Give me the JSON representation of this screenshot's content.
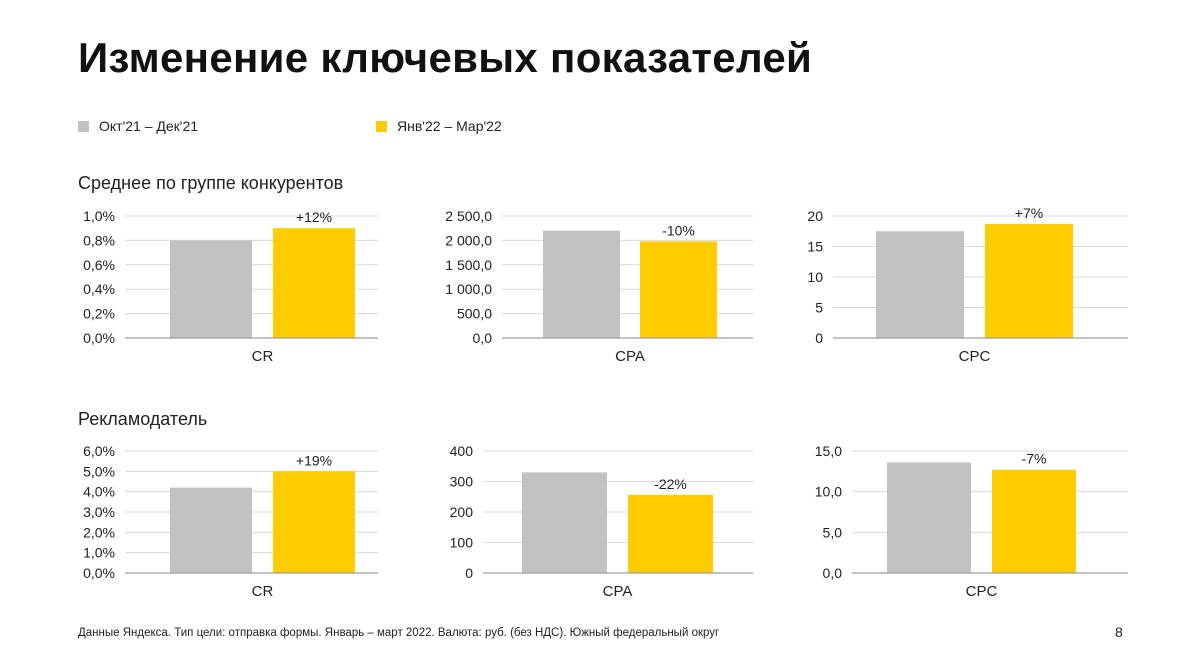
{
  "title": "Изменение ключевых показателей",
  "legend": [
    {
      "label": "Окт'21 – Дек'21",
      "color": "#c2c2c2"
    },
    {
      "label": "Янв'22 – Мар'22",
      "color": "#ffcc00"
    }
  ],
  "sections": [
    {
      "heading": "Среднее по группе конкурентов"
    },
    {
      "heading": "Рекламодатель"
    }
  ],
  "colors": {
    "grid": "#d9d9d9",
    "axis": "#9e9e9e",
    "period1": "#c2c2c2",
    "period2": "#ffcc00"
  },
  "chart_data": [
    {
      "type": "bar",
      "category": "CR",
      "series": [
        {
          "name": "Окт'21 – Дек'21",
          "values": [
            0.8
          ]
        },
        {
          "name": "Янв'22 – Мар'22",
          "values": [
            0.9
          ]
        }
      ],
      "ylim": [
        0,
        1.0
      ],
      "yticks": [
        "0,0%",
        "0,2%",
        "0,4%",
        "0,6%",
        "0,8%",
        "1,0%"
      ],
      "annotation": "+12%",
      "grid": true
    },
    {
      "type": "bar",
      "category": "CPA",
      "series": [
        {
          "name": "Окт'21 – Дек'21",
          "values": [
            2200
          ]
        },
        {
          "name": "Янв'22 – Мар'22",
          "values": [
            1980
          ]
        }
      ],
      "ylim": [
        0,
        2500
      ],
      "yticks": [
        "0,0",
        "500,0",
        "1 000,0",
        "1 500,0",
        "2 000,0",
        "2 500,0"
      ],
      "annotation": "-10%",
      "grid": true
    },
    {
      "type": "bar",
      "category": "CPC",
      "series": [
        {
          "name": "Окт'21 – Дек'21",
          "values": [
            17.5
          ]
        },
        {
          "name": "Янв'22 – Мар'22",
          "values": [
            18.7
          ]
        }
      ],
      "ylim": [
        0,
        20
      ],
      "yticks": [
        "0",
        "5",
        "10",
        "15",
        "20"
      ],
      "annotation": "+7%",
      "grid": true
    },
    {
      "type": "bar",
      "category": "CR",
      "series": [
        {
          "name": "Окт'21 – Дек'21",
          "values": [
            4.2
          ]
        },
        {
          "name": "Янв'22 – Мар'22",
          "values": [
            5.0
          ]
        }
      ],
      "ylim": [
        0,
        6.0
      ],
      "yticks": [
        "0,0%",
        "1,0%",
        "2,0%",
        "3,0%",
        "4,0%",
        "5,0%",
        "6,0%"
      ],
      "annotation": "+19%",
      "grid": true
    },
    {
      "type": "bar",
      "category": "CPA",
      "series": [
        {
          "name": "Окт'21 – Дек'21",
          "values": [
            330
          ]
        },
        {
          "name": "Янв'22 – Мар'22",
          "values": [
            256
          ]
        }
      ],
      "ylim": [
        0,
        400
      ],
      "yticks": [
        "0",
        "100",
        "200",
        "300",
        "400"
      ],
      "annotation": "-22%",
      "grid": true
    },
    {
      "type": "bar",
      "category": "CPC",
      "series": [
        {
          "name": "Окт'21 – Дек'21",
          "values": [
            13.6
          ]
        },
        {
          "name": "Янв'22 – Мар'22",
          "values": [
            12.7
          ]
        }
      ],
      "ylim": [
        0,
        15.0
      ],
      "yticks": [
        "0,0",
        "5,0",
        "10,0",
        "15,0"
      ],
      "annotation": "-7%",
      "grid": true
    }
  ],
  "footer": "Данные Яндекса. Тип цели: отправка формы. Январь – март 2022. Валюта: руб. (без НДС). Южный федеральный округ",
  "page_number": "8"
}
